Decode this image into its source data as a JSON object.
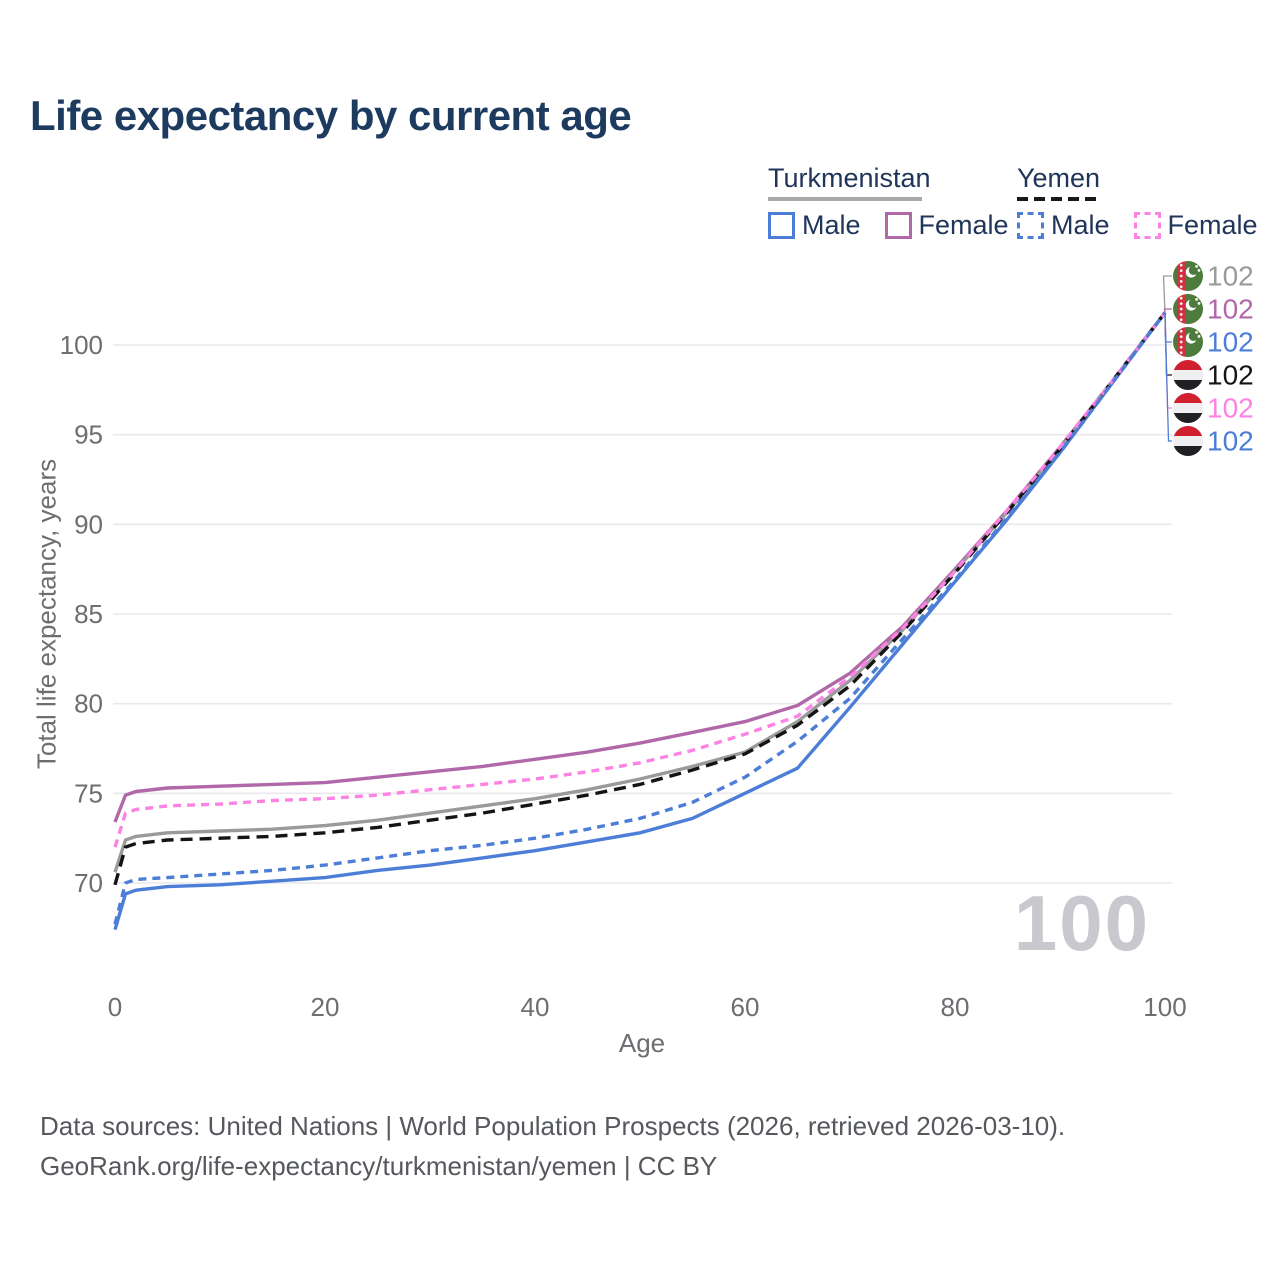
{
  "title": "Life expectancy by current age",
  "legend": {
    "groups": [
      {
        "label": "Turkmenistan",
        "line_style": "solid",
        "line_color": "#a9a9ab",
        "items": [
          {
            "label": "Male",
            "color": "#4d7ed7",
            "dashed": false
          },
          {
            "label": "Female",
            "color": "#b168a9",
            "dashed": false
          }
        ]
      },
      {
        "label": "Yemen",
        "line_style": "dashed",
        "line_color": "#18181b",
        "items": [
          {
            "label": "Male",
            "color": "#4d7ed7",
            "dashed": true
          },
          {
            "label": "Female",
            "color": "#fc82e4",
            "dashed": true
          }
        ]
      }
    ]
  },
  "chart_data": {
    "type": "line",
    "title": "Life expectancy by current age",
    "xlabel": "Age",
    "ylabel": "Total life expectancy, years",
    "x_ticks": [
      0,
      20,
      40,
      60,
      80,
      100
    ],
    "y_ticks": [
      70,
      75,
      80,
      85,
      90,
      95,
      100
    ],
    "xlim": [
      0,
      100
    ],
    "ylim": [
      67,
      103.5
    ],
    "grid": true,
    "legend_position": "top-right",
    "watermark": "100",
    "x": [
      0,
      1,
      2,
      5,
      10,
      15,
      20,
      25,
      30,
      35,
      40,
      45,
      50,
      55,
      60,
      65,
      70,
      75,
      80,
      85,
      90,
      95,
      100
    ],
    "series": [
      {
        "name": "Turkmenistan Female",
        "country": "Turkmenistan",
        "sex": "Female",
        "color": "#b168a9",
        "style": "solid",
        "flag": "turkmenistan",
        "values": [
          73.4,
          74.9,
          75.1,
          75.3,
          75.4,
          75.5,
          75.6,
          75.9,
          76.2,
          76.5,
          76.9,
          77.3,
          77.8,
          78.4,
          79.0,
          79.9,
          81.7,
          84.3,
          87.5,
          90.8,
          94.3,
          98.0,
          101.8
        ]
      },
      {
        "name": "Turkmenistan Total",
        "country": "Turkmenistan",
        "sex": "Both",
        "color": "#9a9a9a",
        "style": "solid",
        "flag": "turkmenistan",
        "values": [
          70.6,
          72.4,
          72.6,
          72.8,
          72.9,
          73.0,
          73.2,
          73.5,
          73.9,
          74.3,
          74.7,
          75.2,
          75.8,
          76.5,
          77.3,
          79.0,
          81.3,
          84.1,
          87.4,
          90.7,
          94.2,
          98.0,
          101.8
        ]
      },
      {
        "name": "Turkmenistan Male",
        "country": "Turkmenistan",
        "sex": "Male",
        "color": "#4d7ed7",
        "style": "solid",
        "flag": "turkmenistan",
        "values": [
          67.4,
          69.4,
          69.6,
          69.8,
          69.9,
          70.1,
          70.3,
          70.7,
          71.0,
          71.4,
          71.8,
          72.3,
          72.8,
          73.6,
          75.0,
          76.4,
          79.8,
          83.3,
          86.8,
          90.3,
          94.0,
          97.9,
          101.8
        ]
      },
      {
        "name": "Yemen Total",
        "country": "Yemen",
        "sex": "Both",
        "color": "#141414",
        "style": "dashed",
        "flag": "yemen",
        "values": [
          69.9,
          72.0,
          72.2,
          72.4,
          72.5,
          72.6,
          72.8,
          73.1,
          73.5,
          73.9,
          74.4,
          74.9,
          75.5,
          76.3,
          77.2,
          78.8,
          81.0,
          84.0,
          87.3,
          90.7,
          94.2,
          98.0,
          101.8
        ]
      },
      {
        "name": "Yemen Female",
        "country": "Yemen",
        "sex": "Female",
        "color": "#fc82e4",
        "style": "dashed",
        "flag": "yemen",
        "values": [
          72.0,
          73.9,
          74.1,
          74.3,
          74.4,
          74.6,
          74.7,
          74.9,
          75.2,
          75.5,
          75.8,
          76.2,
          76.7,
          77.4,
          78.3,
          79.3,
          81.5,
          84.2,
          87.4,
          90.8,
          94.3,
          98.0,
          101.8
        ]
      },
      {
        "name": "Yemen Male",
        "country": "Yemen",
        "sex": "Male",
        "color": "#4d7ed7",
        "style": "dashed",
        "flag": "yemen",
        "values": [
          67.7,
          70.0,
          70.2,
          70.3,
          70.5,
          70.7,
          71.0,
          71.4,
          71.8,
          72.1,
          72.5,
          73.0,
          73.6,
          74.5,
          75.9,
          77.9,
          80.3,
          83.6,
          86.9,
          90.4,
          94.0,
          97.9,
          101.8
        ]
      }
    ],
    "right_labels": [
      {
        "value": "102",
        "color": "#9a9a9a",
        "flag": "turkmenistan",
        "series": "Turkmenistan Total"
      },
      {
        "value": "102",
        "color": "#b168a9",
        "flag": "turkmenistan",
        "series": "Turkmenistan Female"
      },
      {
        "value": "102",
        "color": "#4d7ed7",
        "flag": "turkmenistan",
        "series": "Turkmenistan Male"
      },
      {
        "value": "102",
        "color": "#141414",
        "flag": "yemen",
        "series": "Yemen Total"
      },
      {
        "value": "102",
        "color": "#fc82e4",
        "flag": "yemen",
        "series": "Yemen Female"
      },
      {
        "value": "102",
        "color": "#4d7ed7",
        "flag": "yemen",
        "series": "Yemen Male"
      }
    ]
  },
  "footer": {
    "line1": "Data sources: United Nations | World Population Prospects (2026, retrieved 2026-03-10).",
    "line2": "GeoRank.org/life-expectancy/turkmenistan/yemen | CC BY"
  },
  "colors": {
    "title": "#1d3a5f",
    "axis_text": "#6d6d72",
    "gridline": "#e9e9ec",
    "watermark": "#c8c8ce",
    "footer_text": "#55585d"
  }
}
